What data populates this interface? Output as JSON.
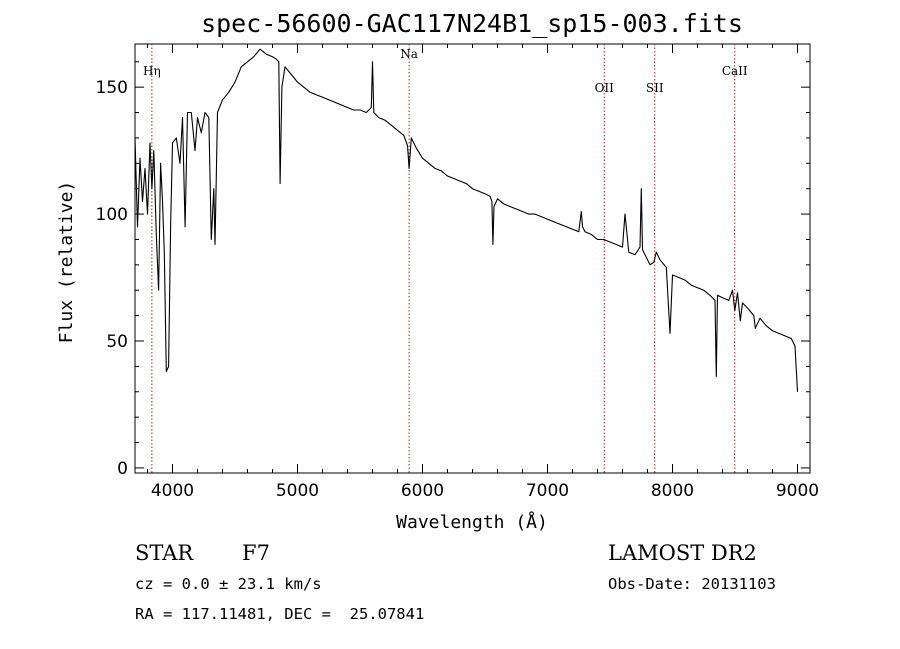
{
  "chart_data": {
    "type": "line",
    "title": "spec-56600-GAC117N24B1_sp15-003.fits",
    "xlabel": "Wavelength (Å)",
    "ylabel": "Flux (relative)",
    "xlim": [
      3700,
      9100
    ],
    "ylim": [
      -2,
      167
    ],
    "grid": false,
    "x_ticks": [
      {
        "value": 4000,
        "label": "4000"
      },
      {
        "value": 5000,
        "label": "5000"
      },
      {
        "value": 6000,
        "label": "6000"
      },
      {
        "value": 7000,
        "label": "7000"
      },
      {
        "value": 8000,
        "label": "8000"
      },
      {
        "value": 9000,
        "label": "9000"
      }
    ],
    "y_ticks": [
      {
        "value": 0,
        "label": "0"
      },
      {
        "value": 50,
        "label": "50"
      },
      {
        "value": 100,
        "label": "100"
      },
      {
        "value": 150,
        "label": "150"
      }
    ],
    "line_color": "#000000",
    "marker_color": "#b22222",
    "spectral_lines": [
      {
        "name": "Hη",
        "wavelength": 3835
      },
      {
        "name": "Na",
        "wavelength": 5893
      },
      {
        "name": "OII",
        "wavelength": 7454
      },
      {
        "name": "SII",
        "wavelength": 7858
      },
      {
        "name": "CaII",
        "wavelength": 8498
      }
    ],
    "series": [
      {
        "x": [
          3700,
          3720,
          3740,
          3760,
          3780,
          3800,
          3820,
          3835,
          3850,
          3870,
          3889,
          3905,
          3920,
          3934,
          3950,
          3969,
          3985,
          4000,
          4030,
          4060,
          4080,
          4101,
          4120,
          4150,
          4180,
          4200,
          4230,
          4260,
          4290,
          4310,
          4330,
          4340,
          4360,
          4400,
          4450,
          4500,
          4550,
          4600,
          4650,
          4700,
          4750,
          4800,
          4830,
          4850,
          4861,
          4875,
          4900,
          4950,
          5000,
          5050,
          5100,
          5150,
          5200,
          5250,
          5300,
          5350,
          5400,
          5450,
          5500,
          5550,
          5590,
          5600,
          5610,
          5650,
          5700,
          5750,
          5800,
          5850,
          5880,
          5893,
          5910,
          5950,
          6000,
          6050,
          6100,
          6150,
          6200,
          6250,
          6300,
          6350,
          6400,
          6450,
          6500,
          6540,
          6555,
          6563,
          6572,
          6600,
          6650,
          6700,
          6750,
          6800,
          6850,
          6900,
          6950,
          7000,
          7050,
          7100,
          7150,
          7200,
          7250,
          7270,
          7280,
          7300,
          7350,
          7400,
          7450,
          7500,
          7550,
          7600,
          7620,
          7650,
          7700,
          7740,
          7750,
          7760,
          7800,
          7820,
          7850,
          7870,
          7900,
          7950,
          7980,
          8000,
          8050,
          8100,
          8150,
          8200,
          8250,
          8300,
          8340,
          8350,
          8360,
          8400,
          8450,
          8480,
          8498,
          8520,
          8542,
          8560,
          8600,
          8650,
          8662,
          8700,
          8750,
          8800,
          8850,
          8900,
          8950,
          8980,
          9000
        ],
        "y": [
          130,
          95,
          122,
          105,
          118,
          100,
          128,
          110,
          125,
          92,
          70,
          120,
          105,
          85,
          38,
          40,
          95,
          128,
          130,
          120,
          138,
          95,
          140,
          140,
          125,
          138,
          132,
          140,
          138,
          90,
          110,
          88,
          140,
          145,
          148,
          152,
          158,
          160,
          162,
          165,
          163,
          162,
          161,
          160,
          112,
          150,
          158,
          155,
          152,
          150,
          148,
          147,
          146,
          145,
          144,
          143,
          142,
          141,
          141,
          140,
          142,
          160,
          140,
          138,
          137,
          135,
          133,
          131,
          127,
          118,
          130,
          126,
          122,
          120,
          118,
          117,
          115,
          114,
          113,
          112,
          110,
          109,
          108,
          107,
          105,
          88,
          103,
          106,
          104,
          103,
          102,
          101,
          100,
          100,
          99,
          98,
          97,
          96,
          95,
          94,
          93,
          101,
          95,
          93,
          92,
          90,
          90,
          89,
          88,
          87,
          100,
          85,
          84,
          87,
          110,
          86,
          82,
          80,
          81,
          85,
          82,
          79,
          53,
          76,
          75,
          74,
          72,
          71,
          70,
          68,
          66,
          36,
          68,
          67,
          66,
          70,
          62,
          69,
          58,
          65,
          63,
          60,
          55,
          59,
          56,
          54,
          53,
          52,
          51,
          48,
          30
        ]
      }
    ],
    "info": {
      "object_class": "STAR",
      "subclass": "F7",
      "survey": "LAMOST DR2",
      "cz": "cz = 0.0 ± 23.1 km/s",
      "obs_date": "Obs-Date: 20131103",
      "coords": "RA = 117.11481, DEC =  25.07841"
    }
  }
}
